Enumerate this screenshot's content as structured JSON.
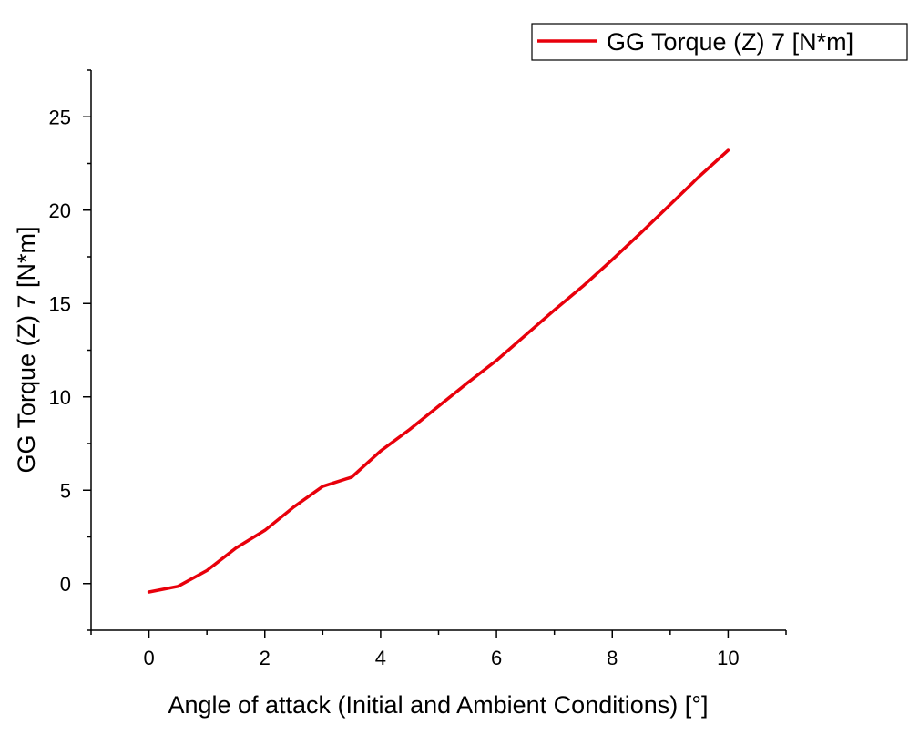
{
  "chart_data": {
    "type": "line",
    "xlabel": "Angle of attack (Initial and Ambient Conditions) [°]",
    "ylabel": "GG Torque (Z) 7 [N*m]",
    "xlim": [
      -1,
      11
    ],
    "ylim": [
      -2.5,
      27.5
    ],
    "xticks": [
      0,
      2,
      4,
      6,
      8,
      10
    ],
    "xtick_labels": [
      "0",
      "2",
      "4",
      "6",
      "8",
      "10"
    ],
    "yticks": [
      0,
      5,
      10,
      15,
      20,
      25
    ],
    "ytick_labels": [
      "0",
      "5",
      "10",
      "15",
      "20",
      "25"
    ],
    "grid": false,
    "legend_position": "top-right",
    "series": [
      {
        "name": "GG Torque (Z) 7 [N*m]",
        "color": "#e8000b",
        "x": [
          0,
          0.5,
          1,
          1.5,
          2,
          2.5,
          3,
          3.5,
          4,
          4.5,
          5,
          5.5,
          6,
          6.5,
          7,
          7.5,
          8,
          8.5,
          9,
          9.5,
          10
        ],
        "y": [
          -0.45,
          -0.15,
          0.7,
          1.9,
          2.85,
          4.1,
          5.2,
          5.7,
          7.1,
          8.25,
          9.5,
          10.75,
          11.95,
          13.3,
          14.65,
          15.95,
          17.35,
          18.8,
          20.3,
          21.8,
          23.2
        ]
      }
    ]
  }
}
